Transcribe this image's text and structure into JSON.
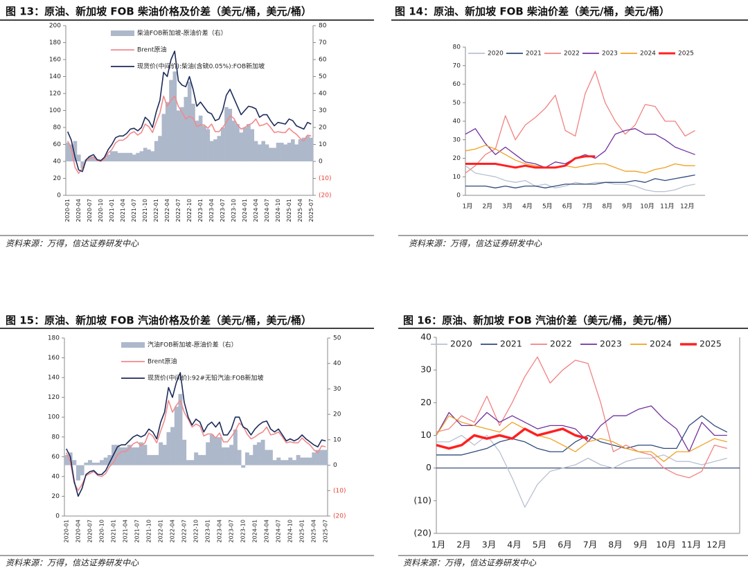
{
  "chart_data": [
    {
      "type": "combo",
      "title": "图 13：原油、新加坡 FOB 柴油价格及价差（美元/桶，美元/桶）",
      "source": "资料来源：万得，信达证券研发中心",
      "categories": [
        "2020-01",
        null,
        null,
        "2020-04",
        null,
        null,
        "2020-07",
        null,
        null,
        "2020-10",
        null,
        null,
        "2021-01",
        null,
        null,
        "2021-04",
        null,
        null,
        "2021-07",
        null,
        null,
        "2021-10",
        null,
        null,
        "2022-01",
        null,
        null,
        "2022-04",
        null,
        null,
        "2022-07",
        null,
        null,
        "2022-10",
        null,
        null,
        "2023-01",
        null,
        null,
        "2023-04",
        null,
        null,
        "2023-07",
        null,
        null,
        "2023-10",
        null,
        null,
        "2024-01",
        null,
        null,
        "2024-04",
        null,
        null,
        "2024-07",
        null,
        null,
        "2024-10",
        null,
        null,
        "2025-01",
        null,
        null,
        "2025-04",
        null,
        null,
        "2025-07"
      ],
      "ylim": [
        0,
        200
      ],
      "yticks": [
        0,
        20,
        40,
        60,
        80,
        100,
        120,
        140,
        160,
        180,
        200
      ],
      "y2lim": [
        -20,
        80
      ],
      "y2ticks": [
        {
          "value": -20,
          "label": "(20)"
        },
        {
          "value": -10,
          "label": "(10)"
        },
        0,
        10,
        20,
        30,
        40,
        50,
        60,
        70,
        80
      ],
      "negative_label_color": "#e8443a",
      "series": [
        {
          "name": "柴油FOB新加坡-原油价差（右）",
          "type": "bar",
          "axis": "y2",
          "color": "#aeb8cb",
          "values": [
            11,
            10,
            12,
            4,
            -4,
            1,
            3,
            3,
            1,
            1,
            2,
            4,
            6,
            6,
            5,
            5,
            5,
            5,
            4,
            5,
            6,
            8,
            7,
            6,
            12,
            15,
            28,
            35,
            48,
            53,
            30,
            32,
            38,
            47,
            34,
            24,
            27,
            21,
            19,
            12,
            13,
            15,
            20,
            32,
            31,
            24,
            22,
            17,
            20,
            22,
            19,
            12,
            10,
            12,
            10,
            8,
            8,
            11,
            11,
            10,
            11,
            13,
            10,
            13,
            14,
            15,
            14
          ]
        },
        {
          "name": "Brent原油",
          "type": "line",
          "color": "#f08a8c",
          "values": [
            64,
            55,
            33,
            26,
            32,
            41,
            43,
            45,
            41,
            40,
            43,
            50,
            54,
            62,
            65,
            65,
            68,
            73,
            75,
            71,
            74,
            84,
            81,
            74,
            86,
            97,
            117,
            105,
            112,
            117,
            105,
            98,
            90,
            93,
            91,
            81,
            83,
            83,
            79,
            84,
            75,
            75,
            80,
            86,
            94,
            91,
            83,
            78,
            80,
            83,
            85,
            90,
            82,
            83,
            85,
            80,
            74,
            75,
            74,
            74,
            79,
            75,
            72,
            67,
            64,
            71,
            70
          ]
        },
        {
          "name": "现货价(中间价):柴油(含硫0.05%):FOB新加坡",
          "type": "line",
          "color": "#1c2a5a",
          "values": [
            75,
            65,
            45,
            30,
            28,
            42,
            46,
            48,
            42,
            41,
            45,
            54,
            60,
            68,
            70,
            70,
            73,
            78,
            79,
            76,
            80,
            92,
            88,
            80,
            98,
            112,
            145,
            140,
            160,
            170,
            135,
            130,
            128,
            140,
            125,
            105,
            110,
            104,
            98,
            96,
            88,
            90,
            100,
            118,
            125,
            115,
            105,
            95,
            100,
            105,
            104,
            102,
            92,
            95,
            95,
            88,
            82,
            86,
            85,
            84,
            90,
            88,
            82,
            80,
            78,
            86,
            84
          ]
        }
      ]
    },
    {
      "type": "line",
      "title": "图 14：原油、新加坡 FOB 柴油价差（美元/桶，美元/桶）",
      "source": "资料来源：万得，信达证券研发中心",
      "categories": [
        "1月",
        null,
        "2月",
        null,
        "3月",
        null,
        "4月",
        null,
        "5月",
        null,
        "6月",
        null,
        "7月",
        null,
        "8月",
        null,
        "9月",
        null,
        "10月",
        null,
        "11月",
        null,
        "12月",
        null
      ],
      "ylim": [
        0,
        80
      ],
      "yticks": [
        0,
        10,
        20,
        30,
        40,
        50,
        60,
        70,
        80
      ],
      "series": [
        {
          "name": "2020",
          "color": "#b8c0d0",
          "values": [
            16,
            12,
            11,
            10,
            8,
            7,
            8,
            5,
            6,
            4,
            5,
            7,
            6,
            7,
            7,
            6,
            6,
            5,
            3,
            2,
            2,
            3,
            5,
            6
          ]
        },
        {
          "name": "2021",
          "color": "#2e4a7a",
          "values": [
            5,
            5,
            5,
            4,
            5,
            4,
            5,
            5,
            4,
            5,
            6,
            6,
            6,
            6,
            7,
            7,
            7,
            8,
            7,
            9,
            8,
            9,
            10,
            11
          ]
        },
        {
          "name": "2022",
          "color": "#f28080",
          "values": [
            12,
            16,
            22,
            25,
            43,
            30,
            38,
            42,
            47,
            54,
            35,
            32,
            55,
            67,
            50,
            40,
            33,
            38,
            49,
            48,
            40,
            40,
            32,
            35
          ]
        },
        {
          "name": "2023",
          "color": "#7030a0",
          "values": [
            33,
            36,
            28,
            22,
            26,
            22,
            18,
            17,
            15,
            18,
            17,
            20,
            22,
            20,
            24,
            33,
            35,
            36,
            33,
            33,
            30,
            26,
            24,
            22
          ]
        },
        {
          "name": "2024",
          "color": "#f0a020",
          "values": [
            24,
            25,
            27,
            25,
            22,
            19,
            17,
            16,
            15,
            15,
            16,
            15,
            16,
            17,
            17,
            15,
            13,
            13,
            12,
            14,
            15,
            17,
            16,
            16
          ]
        },
        {
          "name": "2025",
          "color": "#ff2020",
          "line_width": 3,
          "values": [
            17,
            17,
            17,
            17,
            16,
            15,
            16,
            15,
            15,
            15,
            16,
            20,
            21,
            21,
            null,
            null,
            null,
            null,
            null,
            null,
            null,
            null,
            null,
            null
          ]
        }
      ]
    },
    {
      "type": "combo",
      "title": "图 15：原油、新加坡 FOB 汽油价格及价差（美元/桶，美元/桶）",
      "source": "资料来源：万得，信达证券研发中心",
      "categories": [
        "2020-01",
        null,
        null,
        "2020-04",
        null,
        null,
        "2020-07",
        null,
        null,
        "2020-10",
        null,
        null,
        "2021-01",
        null,
        null,
        "2021-04",
        null,
        null,
        "2021-07",
        null,
        null,
        "2021-10",
        null,
        null,
        "2022-01",
        null,
        null,
        "2022-04",
        null,
        null,
        "2022-07",
        null,
        null,
        "2022-10",
        null,
        null,
        "2023-01",
        null,
        null,
        "2023-04",
        null,
        null,
        "2023-07",
        null,
        null,
        "2023-10",
        null,
        null,
        "2024-01",
        null,
        null,
        "2024-04",
        null,
        null,
        "2024-07",
        null,
        null,
        "2024-10",
        null,
        null,
        "2025-01",
        null,
        null,
        "2025-04",
        null,
        null,
        "2025-07"
      ],
      "ylim": [
        0,
        180
      ],
      "yticks": [
        0,
        20,
        40,
        60,
        80,
        100,
        120,
        140,
        160,
        180
      ],
      "y2lim": [
        -20,
        50
      ],
      "y2ticks": [
        {
          "value": -20,
          "label": "(20)"
        },
        {
          "value": -10,
          "label": "(10)"
        },
        0,
        10,
        20,
        30,
        40,
        50
      ],
      "negative_label_color": "#e8443a",
      "series": [
        {
          "name": "汽油FOB新加坡-原油价差（右）",
          "type": "bar",
          "axis": "y2",
          "color": "#aeb8cb",
          "values": [
            4,
            5,
            2,
            -6,
            -4,
            1,
            2,
            1,
            1,
            2,
            3,
            4,
            8,
            8,
            7,
            7,
            8,
            7,
            7,
            9,
            8,
            4,
            4,
            4,
            9,
            8,
            13,
            15,
            23,
            28,
            10,
            2,
            2,
            5,
            4,
            4,
            9,
            12,
            11,
            11,
            7,
            7,
            8,
            14,
            6,
            -1,
            5,
            4,
            8,
            9,
            10,
            6,
            6,
            2,
            3,
            2,
            2,
            3,
            2,
            4,
            3,
            3,
            3,
            5,
            6,
            6,
            6
          ]
        },
        {
          "name": "Brent原油",
          "type": "line",
          "color": "#f08a8c",
          "values": [
            64,
            55,
            33,
            26,
            32,
            41,
            43,
            45,
            41,
            40,
            43,
            50,
            54,
            62,
            65,
            65,
            68,
            73,
            75,
            71,
            74,
            84,
            81,
            74,
            86,
            97,
            117,
            105,
            112,
            117,
            105,
            98,
            90,
            93,
            91,
            81,
            83,
            83,
            79,
            84,
            75,
            75,
            80,
            86,
            94,
            91,
            83,
            78,
            80,
            83,
            85,
            90,
            82,
            83,
            85,
            80,
            74,
            75,
            74,
            74,
            79,
            75,
            72,
            67,
            64,
            71,
            70
          ]
        },
        {
          "name": "现货价(中间价):92#无铅汽油:FOB新加坡",
          "type": "line",
          "color": "#1c2a5a",
          "values": [
            68,
            60,
            35,
            20,
            28,
            42,
            45,
            46,
            42,
            42,
            46,
            54,
            62,
            70,
            72,
            72,
            76,
            80,
            82,
            80,
            82,
            88,
            85,
            78,
            95,
            105,
            130,
            120,
            135,
            145,
            115,
            100,
            92,
            98,
            95,
            85,
            92,
            95,
            90,
            95,
            82,
            82,
            88,
            100,
            100,
            90,
            88,
            82,
            88,
            92,
            95,
            96,
            88,
            85,
            88,
            82,
            76,
            78,
            76,
            78,
            82,
            78,
            75,
            72,
            70,
            77,
            76
          ]
        }
      ]
    },
    {
      "type": "line",
      "title": "图 16：原油、新加坡 FOB 汽油价差（美元/桶，美元/桶）",
      "source": "资料来源：万得，信达证券研发中心",
      "categories": [
        "1月",
        null,
        "2月",
        null,
        "3月",
        null,
        "4月",
        null,
        "5月",
        null,
        "6月",
        null,
        "7月",
        null,
        "8月",
        null,
        "9月",
        null,
        "10月",
        null,
        "11月",
        null,
        "12月",
        null
      ],
      "ylim": [
        -20,
        40
      ],
      "yticks": [
        {
          "value": -20,
          "label": "(20)"
        },
        {
          "value": -10,
          "label": "(10)"
        },
        0,
        10,
        20,
        30,
        40
      ],
      "zero_line": true,
      "series": [
        {
          "name": "2020",
          "color": "#b8c0d0",
          "values": [
            8,
            8,
            10,
            7,
            10,
            5,
            -3,
            -12,
            -5,
            -1,
            0,
            1,
            3,
            1,
            0,
            2,
            3,
            3,
            4,
            2,
            2,
            1,
            2,
            3
          ]
        },
        {
          "name": "2021",
          "color": "#2e4a7a",
          "values": [
            4,
            4,
            4,
            5,
            6,
            8,
            9,
            8,
            6,
            5,
            5,
            8,
            10,
            8,
            7,
            6,
            7,
            7,
            6,
            6,
            13,
            16,
            13,
            11
          ]
        },
        {
          "name": "2022",
          "color": "#f28080",
          "values": [
            11,
            12,
            16,
            14,
            22,
            13,
            20,
            28,
            34,
            26,
            30,
            33,
            32,
            20,
            5,
            7,
            5,
            4,
            0,
            -2,
            -3,
            -1,
            7,
            6
          ]
        },
        {
          "name": "2023",
          "color": "#7030a0",
          "values": [
            10,
            17,
            13,
            13,
            17,
            14,
            16,
            14,
            12,
            13,
            13,
            12,
            8,
            13,
            16,
            16,
            18,
            19,
            15,
            12,
            5,
            14,
            10,
            10
          ]
        },
        {
          "name": "2024",
          "color": "#f0a020",
          "values": [
            10,
            16,
            14,
            13,
            12,
            11,
            14,
            12,
            10,
            9,
            7,
            5,
            8,
            9,
            8,
            6,
            5,
            5,
            2,
            5,
            5,
            7,
            9,
            8
          ]
        },
        {
          "name": "2025",
          "color": "#ff2020",
          "line_width": 3.5,
          "values": [
            7,
            6,
            7,
            10,
            9,
            10,
            9,
            12,
            10,
            11,
            12,
            10,
            9,
            null,
            null,
            null,
            null,
            null,
            null,
            null,
            null,
            null,
            null,
            null
          ]
        }
      ]
    }
  ]
}
